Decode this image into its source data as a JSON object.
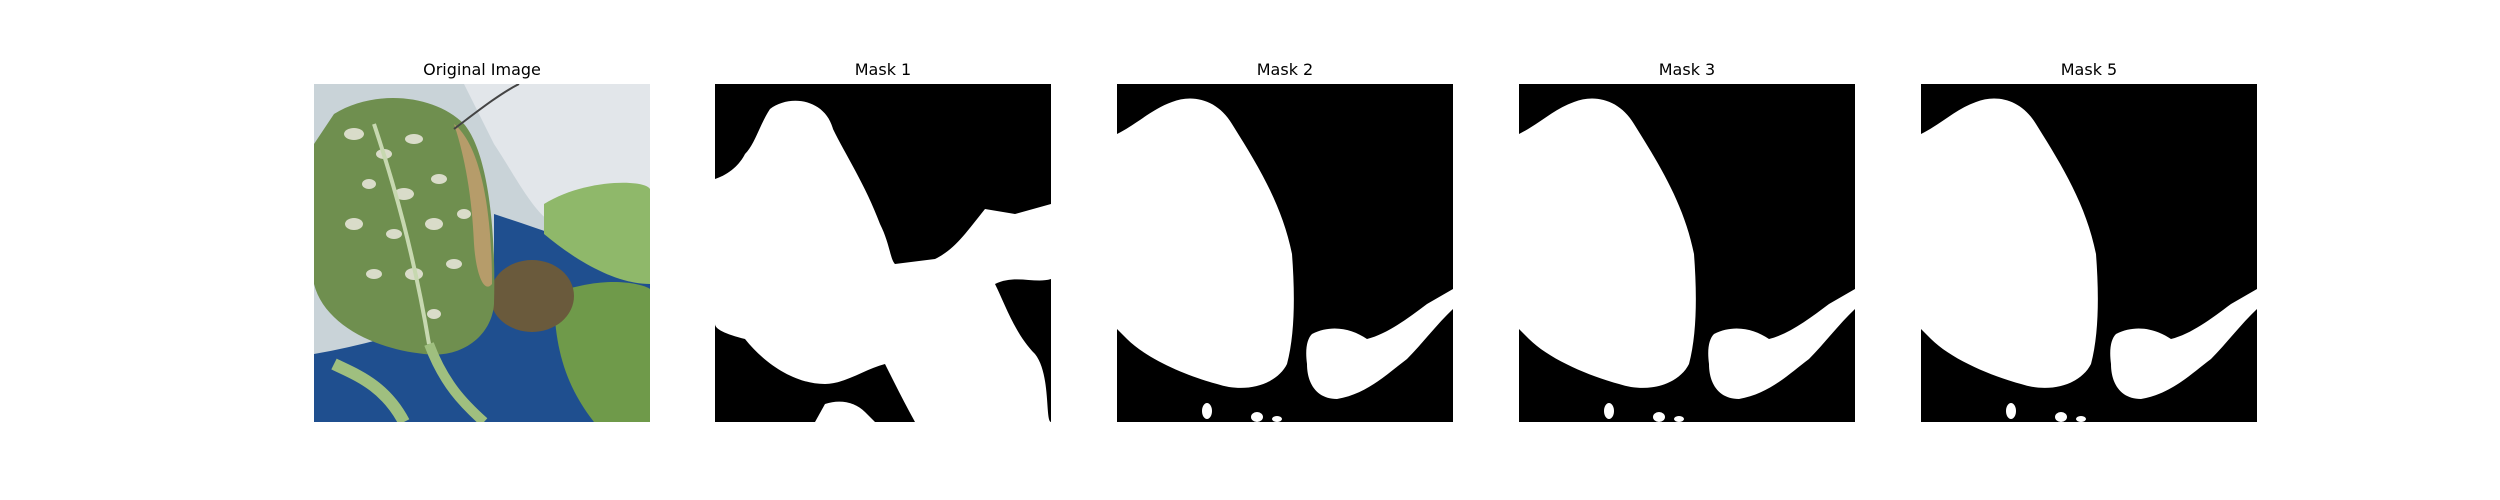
{
  "panels": [
    {
      "title": "Original Image",
      "kind": "photo"
    },
    {
      "title": "Mask 1",
      "kind": "mask"
    },
    {
      "title": "Mask 2",
      "kind": "mask"
    },
    {
      "title": "Mask 3",
      "kind": "mask"
    },
    {
      "title": "Mask 5",
      "kind": "mask"
    }
  ],
  "colors": {
    "mask_background": "#000000",
    "mask_foreground": "#ffffff",
    "photo_background": "#c9d3d8",
    "leaf": "#6f8f4f",
    "leaf_spots": "#d9dcc9",
    "blue_pot": "#1f4f8f",
    "brown_leaf": "#6a5a3c"
  }
}
